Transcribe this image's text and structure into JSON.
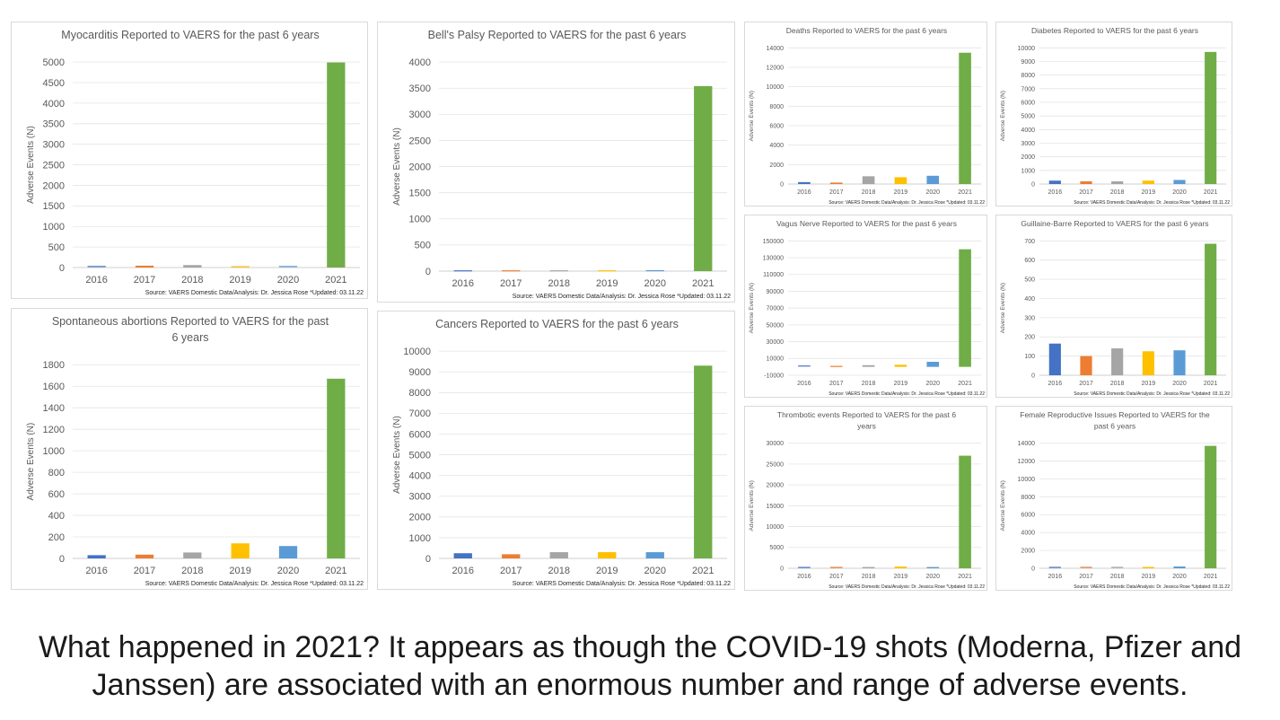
{
  "caption": {
    "line1": "What happened in 2021? It appears as though the COVID-19 shots (Moderna, Pfizer and",
    "line2": "Janssen) are associated with an enormous number and range of adverse events."
  },
  "colors": [
    "#4472c4",
    "#ed7d31",
    "#a5a5a5",
    "#ffc000",
    "#5b9bd5",
    "#70ad47"
  ],
  "chart_data": [
    {
      "id": "myocarditis",
      "type": "bar",
      "title": [
        "Myocarditis Reported to VAERS for the past 6 years"
      ],
      "ylabel": "Adverse Events (N)",
      "categories": [
        "2016",
        "2017",
        "2018",
        "2019",
        "2020",
        "2021"
      ],
      "values": [
        25,
        45,
        60,
        20,
        25,
        4990
      ],
      "ylim": [
        0,
        5000
      ],
      "yticks": [
        0,
        500,
        1000,
        1500,
        2000,
        2500,
        3000,
        3500,
        4000,
        4500,
        5000
      ],
      "source": "Source: VAERS Domestic Data/Analysis: Dr. Jessica Rose *Updated: 03.11.22",
      "grid": true,
      "legend": "none"
    },
    {
      "id": "bells-palsy",
      "type": "bar",
      "title": [
        "Bell's Palsy Reported to VAERS for the past 6 years"
      ],
      "ylabel": "Adverse Events (N)",
      "categories": [
        "2016",
        "2017",
        "2018",
        "2019",
        "2020",
        "2021"
      ],
      "values": [
        5,
        5,
        5,
        5,
        8,
        3540
      ],
      "ylim": [
        0,
        4000
      ],
      "yticks": [
        0,
        500,
        1000,
        1500,
        2000,
        2500,
        3000,
        3500,
        4000
      ],
      "source": "Source: VAERS Domestic Data/Analysis: Dr. Jessica Rose *Updated: 03.11.22",
      "grid": true,
      "legend": "none"
    },
    {
      "id": "deaths",
      "type": "bar",
      "title": [
        "Deaths Reported to VAERS for the past 6 years"
      ],
      "ylabel": "Adverse Events (N)",
      "categories": [
        "2016",
        "2017",
        "2018",
        "2019",
        "2020",
        "2021"
      ],
      "values": [
        200,
        150,
        800,
        700,
        850,
        13500
      ],
      "ylim": [
        0,
        14000
      ],
      "yticks": [
        0,
        2000,
        4000,
        6000,
        8000,
        10000,
        12000,
        14000
      ],
      "source": "Source: VAERS Domestic Data/Analysis: Dr. Jessica Rose *Updated: 03.11.22",
      "grid": true,
      "legend": "none"
    },
    {
      "id": "diabetes",
      "type": "bar",
      "title": [
        "Diabetes Reported to VAERS for the past 6 years"
      ],
      "ylabel": "Adverse Events (N)",
      "categories": [
        "2016",
        "2017",
        "2018",
        "2019",
        "2020",
        "2021"
      ],
      "values": [
        250,
        200,
        200,
        250,
        300,
        9700
      ],
      "ylim": [
        0,
        10000
      ],
      "yticks": [
        0,
        1000,
        2000,
        3000,
        4000,
        5000,
        6000,
        7000,
        8000,
        9000,
        10000
      ],
      "source": "Source: VAERS Domestic Data/Analysis: Dr. Jessica Rose *Updated: 03.11.22",
      "grid": true,
      "legend": "none"
    },
    {
      "id": "spontaneous-abortions",
      "type": "bar",
      "title": [
        "Spontaneous abortions Reported to VAERS for the past",
        "6 years"
      ],
      "ylabel": "Adverse Events (N)",
      "categories": [
        "2016",
        "2017",
        "2018",
        "2019",
        "2020",
        "2021"
      ],
      "values": [
        30,
        35,
        55,
        140,
        115,
        1670
      ],
      "ylim": [
        0,
        1800
      ],
      "yticks": [
        0,
        200,
        400,
        600,
        800,
        1000,
        1200,
        1400,
        1600,
        1800
      ],
      "source": "Source: VAERS Domestic Data/Analysis: Dr. Jessica Rose *Updated: 03.11.22",
      "grid": true,
      "legend": "none"
    },
    {
      "id": "cancers",
      "type": "bar",
      "title": [
        "Cancers Reported to VAERS for the past 6 years"
      ],
      "ylabel": "Adverse Events (N)",
      "categories": [
        "2016",
        "2017",
        "2018",
        "2019",
        "2020",
        "2021"
      ],
      "values": [
        250,
        200,
        300,
        300,
        300,
        9300
      ],
      "ylim": [
        0,
        10000
      ],
      "yticks": [
        0,
        1000,
        2000,
        3000,
        4000,
        5000,
        6000,
        7000,
        8000,
        9000,
        10000
      ],
      "source": "Source: VAERS Domestic Data/Analysis: Dr. Jessica Rose *Updated: 03.11.22",
      "grid": true,
      "legend": "none"
    },
    {
      "id": "vagus-nerve",
      "type": "bar",
      "title": [
        "Vagus Nerve Reported to VAERS for the past 6 years"
      ],
      "ylabel": "Adverse Events (N)",
      "categories": [
        "2016",
        "2017",
        "2018",
        "2019",
        "2020",
        "2021"
      ],
      "values": [
        1000,
        500,
        2000,
        2500,
        6000,
        140000
      ],
      "ylim": [
        -10000,
        150000
      ],
      "yticks": [
        -10000,
        10000,
        30000,
        50000,
        70000,
        90000,
        110000,
        130000,
        150000
      ],
      "source": "Source: VAERS Domestic Data/Analysis: Dr. Jessica Rose *Updated: 03.11.22",
      "grid": true,
      "legend": "none"
    },
    {
      "id": "guillain-barre",
      "type": "bar",
      "title": [
        "Guillaine-Barre Reported to VAERS for the past 6 years"
      ],
      "ylabel": "Adverse Events (N)",
      "categories": [
        "2016",
        "2017",
        "2018",
        "2019",
        "2020",
        "2021"
      ],
      "values": [
        165,
        100,
        140,
        125,
        130,
        685
      ],
      "ylim": [
        0,
        700
      ],
      "yticks": [
        0,
        100,
        200,
        300,
        400,
        500,
        600,
        700
      ],
      "source": "Source: VAERS Domestic Data/Analysis: Dr. Jessica Rose *Updated: 03.11.22",
      "grid": true,
      "legend": "none"
    },
    {
      "id": "thrombotic-events",
      "type": "bar",
      "title": [
        "Thrombotic events Reported to VAERS for the past 6",
        "years"
      ],
      "ylabel": "Adverse Events (N)",
      "categories": [
        "2016",
        "2017",
        "2018",
        "2019",
        "2020",
        "2021"
      ],
      "values": [
        200,
        200,
        300,
        400,
        300,
        27000
      ],
      "ylim": [
        0,
        30000
      ],
      "yticks": [
        0,
        5000,
        10000,
        15000,
        20000,
        25000,
        30000
      ],
      "source": "Source: VAERS Domestic Data/Analysis: Dr. Jessica Rose *Updated: 03.11.22",
      "grid": true,
      "legend": "none"
    },
    {
      "id": "female-reproductive",
      "type": "bar",
      "title": [
        "Female Reproductive Issues Reported to VAERS for the",
        "past 6 years"
      ],
      "ylabel": "Adverse Events (N)",
      "categories": [
        "2016",
        "2017",
        "2018",
        "2019",
        "2020",
        "2021"
      ],
      "values": [
        100,
        100,
        100,
        150,
        200,
        13700
      ],
      "ylim": [
        0,
        14000
      ],
      "yticks": [
        0,
        2000,
        4000,
        6000,
        8000,
        10000,
        12000,
        14000
      ],
      "source": "Source: VAERS Domestic Data/Analysis: Dr. Jessica Rose *Updated: 03.11.22",
      "grid": true,
      "legend": "none"
    }
  ]
}
